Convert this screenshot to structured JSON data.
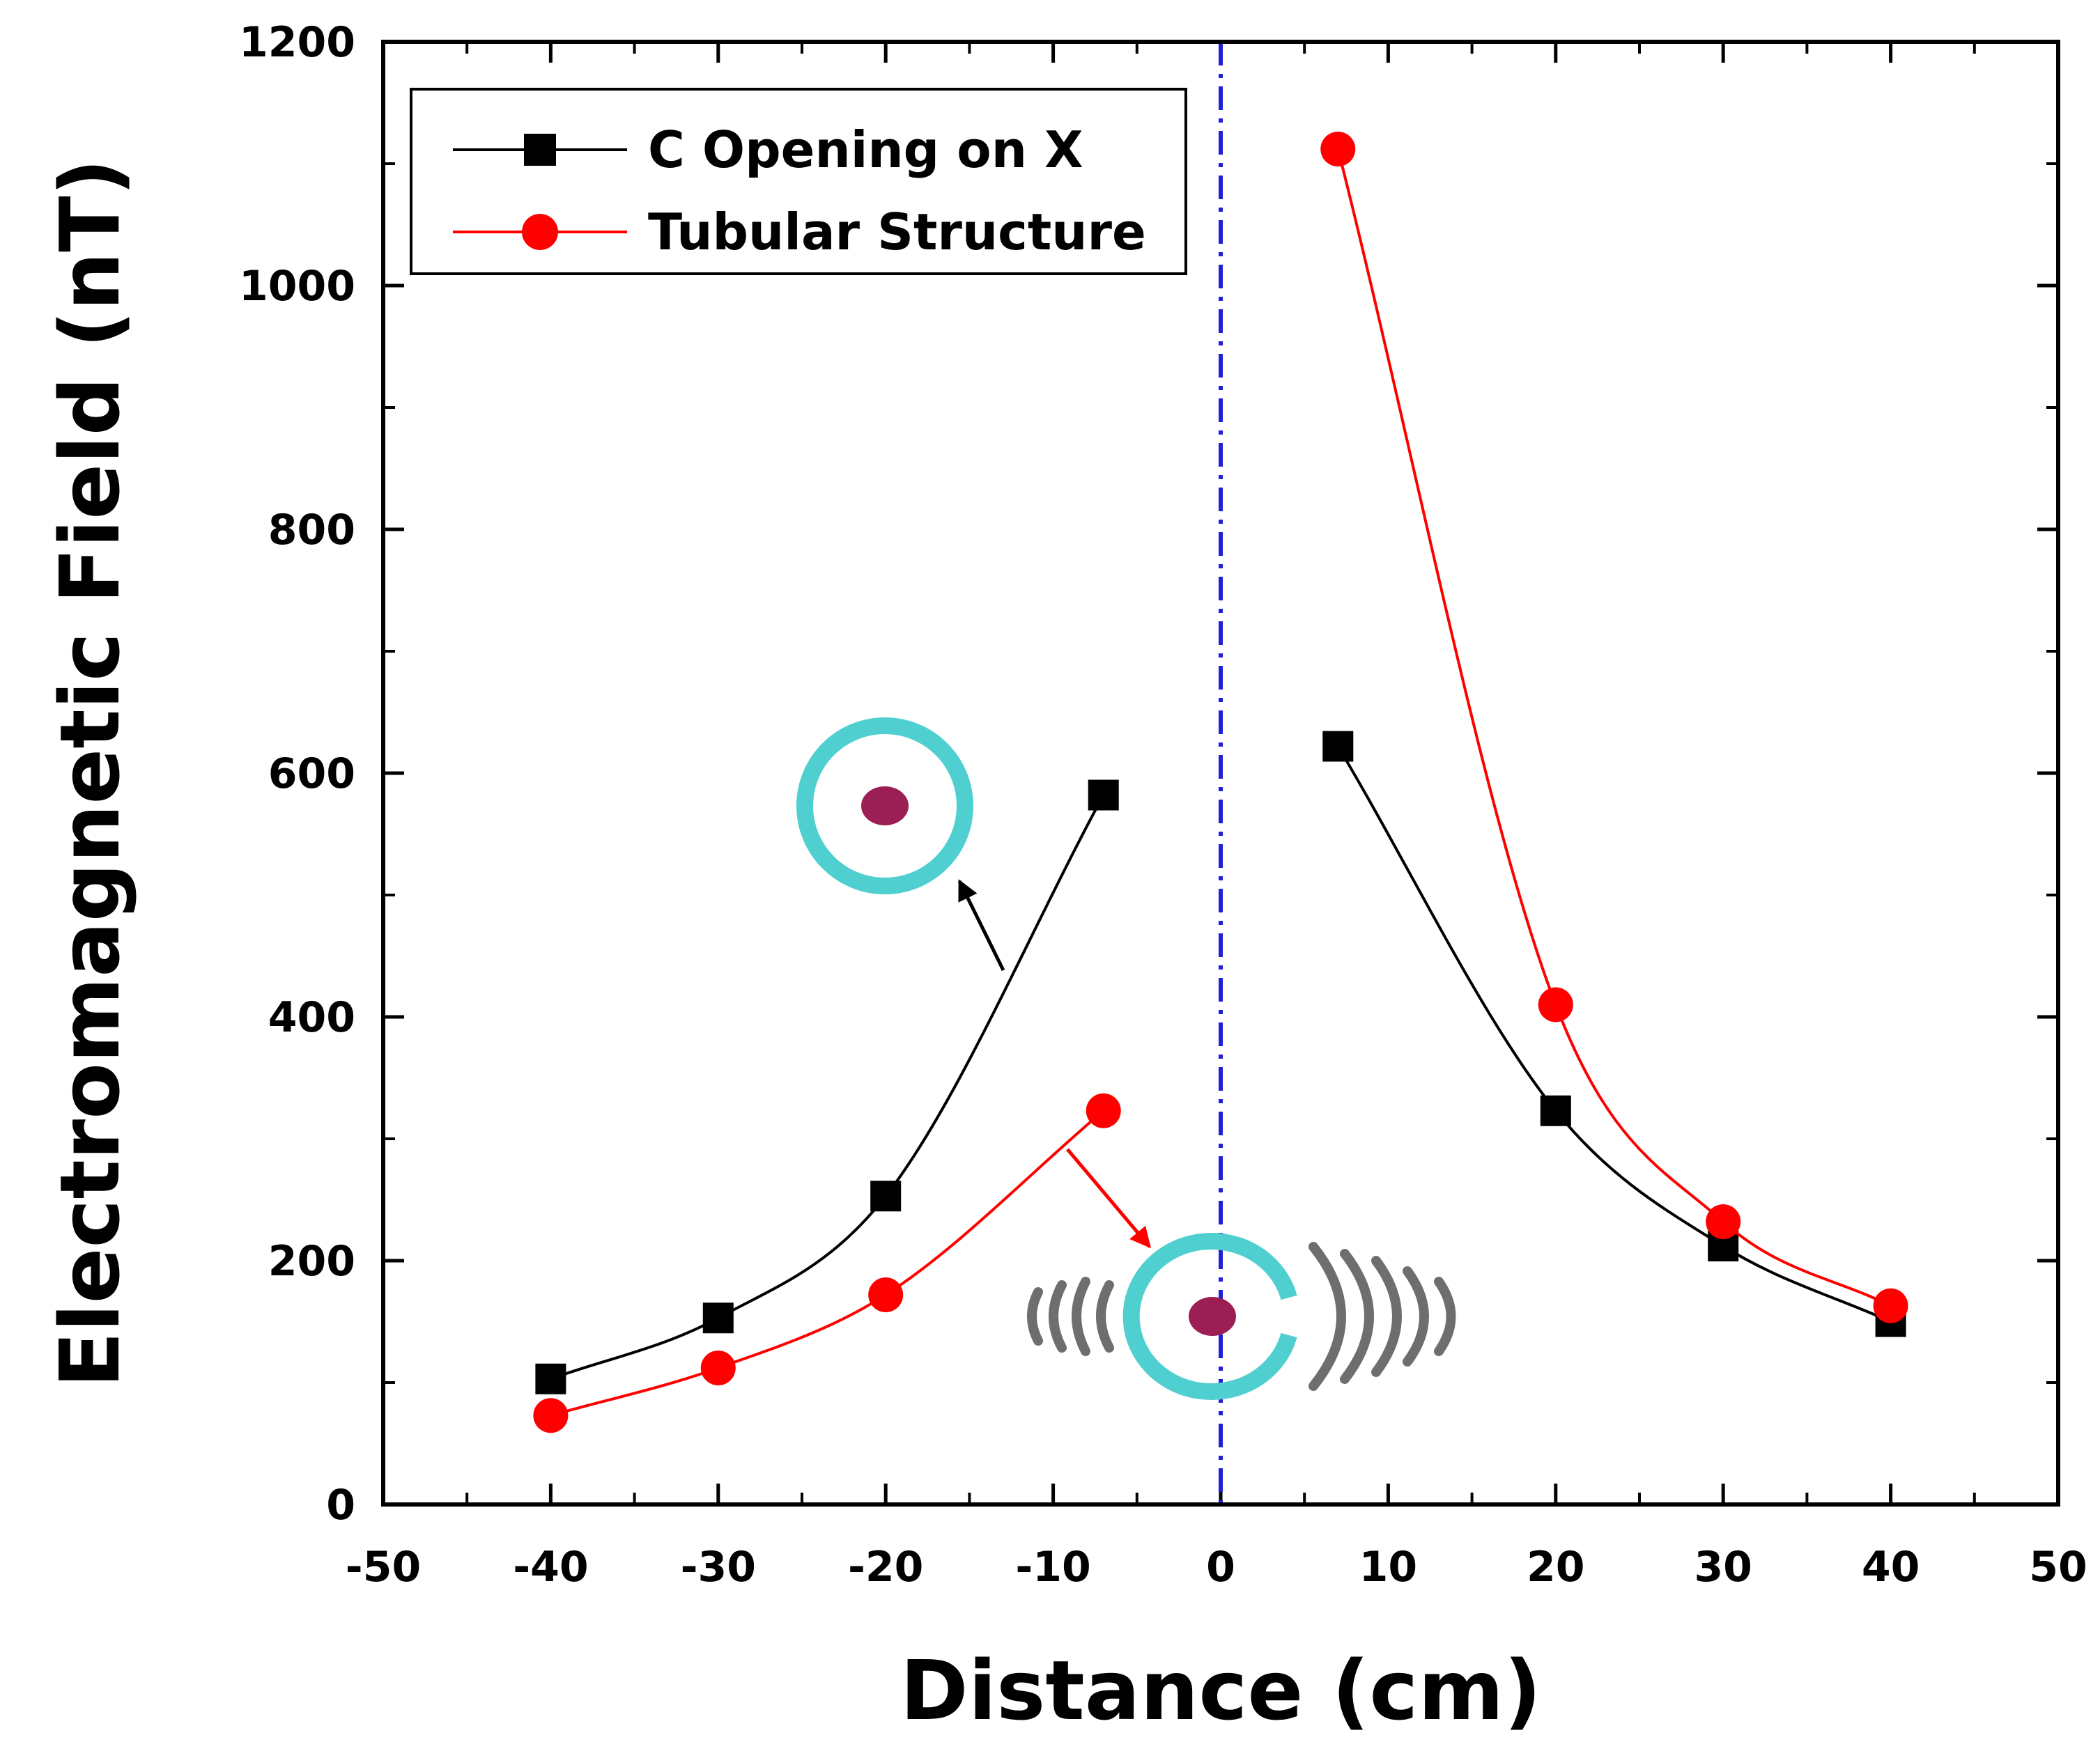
{
  "chart_data": {
    "type": "line",
    "xlabel": "Distance (cm)",
    "ylabel": "Electromagnetic Field (nT)",
    "xlim": [
      -50,
      50
    ],
    "ylim": [
      0,
      1200
    ],
    "xticks": [
      -50,
      -40,
      -30,
      -20,
      -10,
      0,
      10,
      20,
      30,
      40,
      50
    ],
    "yticks": [
      0,
      200,
      400,
      600,
      800,
      1000,
      1200
    ],
    "grid": false,
    "legend_position": "top-left",
    "reference_line": {
      "x": 0,
      "color": "#1f1fdc",
      "style": "dash-dot"
    },
    "series": [
      {
        "name": "C Opening on X",
        "color": "#000000",
        "marker": "square",
        "segments": [
          {
            "x": [
              -40,
              -30,
              -20,
              -7
            ],
            "y": [
              103,
              153,
              253,
              582
            ]
          },
          {
            "x": [
              7,
              20,
              30,
              40
            ],
            "y": [
              622,
              323,
              212,
              150
            ]
          }
        ]
      },
      {
        "name": "Tubular Structure",
        "color": "#ff0000",
        "marker": "circle",
        "segments": [
          {
            "x": [
              -40,
              -30,
              -20,
              -7
            ],
            "y": [
              73,
              112,
              172,
              323
            ]
          },
          {
            "x": [
              7,
              20,
              30,
              40
            ],
            "y": [
              1112,
              410,
              232,
              163
            ]
          }
        ]
      }
    ]
  },
  "illustrations": {
    "ring_color": "#4fcfcf",
    "dot_color": "#9b1f55",
    "wave_color": "#6e6e6e",
    "arrow_colors": [
      "#000000",
      "#ff0000"
    ]
  }
}
